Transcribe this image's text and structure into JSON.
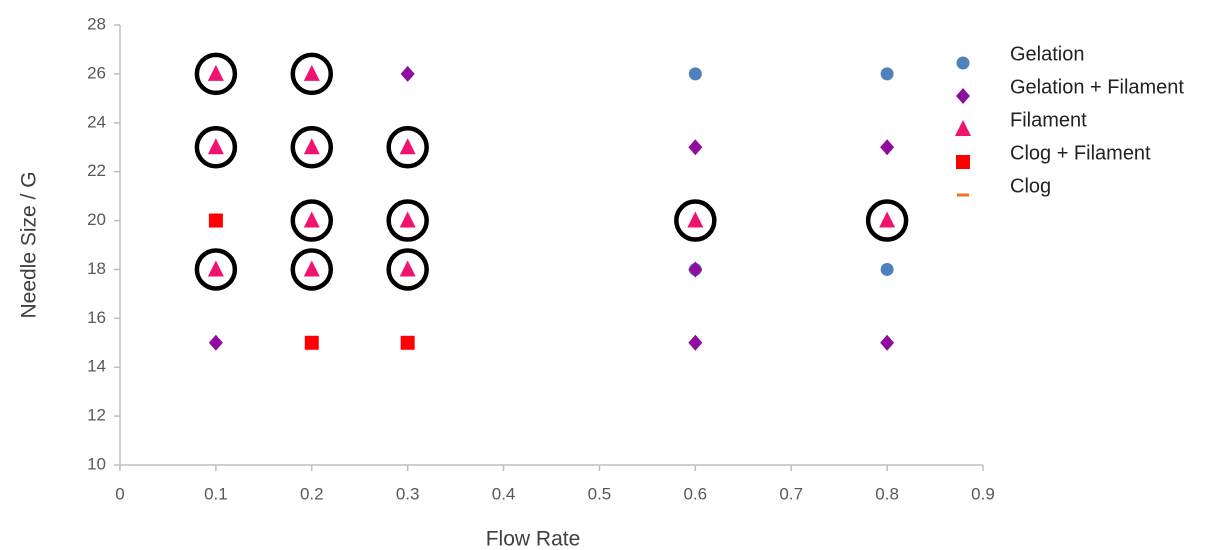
{
  "chart_data": {
    "type": "scatter",
    "x_label": "Flow Rate",
    "y_label": "Needle Size / G",
    "xlim": [
      0,
      0.9
    ],
    "xticks": [
      0,
      0.1,
      0.2,
      0.3,
      0.4,
      0.5,
      0.6,
      0.7,
      0.8,
      0.9
    ],
    "ylim": [
      10,
      28
    ],
    "yticks": [
      10,
      12,
      14,
      16,
      18,
      20,
      22,
      24,
      26,
      28
    ],
    "grid": false,
    "legend": "right",
    "series": [
      {
        "name": "Gelation",
        "color": "#4f81bd",
        "marker": "circle",
        "circled": false,
        "x": [
          0.6,
          0.8,
          0.8,
          0.6
        ],
        "y": [
          26,
          26,
          18,
          18
        ]
      },
      {
        "name": "Gelation + Filament",
        "color": "#8e0d9e",
        "marker": "diamond",
        "circled": false,
        "x": [
          0.3,
          0.6,
          0.8,
          0.6,
          0.1,
          0.6,
          0.8
        ],
        "y": [
          26,
          23,
          23,
          18,
          15,
          15,
          15
        ]
      },
      {
        "name": "Filament",
        "color": "#f0146e",
        "marker": "triangle",
        "circled": true,
        "x": [
          0.1,
          0.2,
          0.1,
          0.2,
          0.3,
          0.2,
          0.3,
          0.6,
          0.8,
          0.1,
          0.2,
          0.3
        ],
        "y": [
          26,
          26,
          23,
          23,
          23,
          20,
          20,
          20,
          20,
          18,
          18,
          18
        ]
      },
      {
        "name": "Clog + Filament",
        "color": "#ff0000",
        "marker": "square",
        "circled": false,
        "x": [
          0.1,
          0.2,
          0.3
        ],
        "y": [
          20,
          15,
          15
        ]
      },
      {
        "name": "Clog",
        "color": "#f07020",
        "marker": "dash",
        "circled": false,
        "x": [],
        "y": []
      }
    ]
  }
}
